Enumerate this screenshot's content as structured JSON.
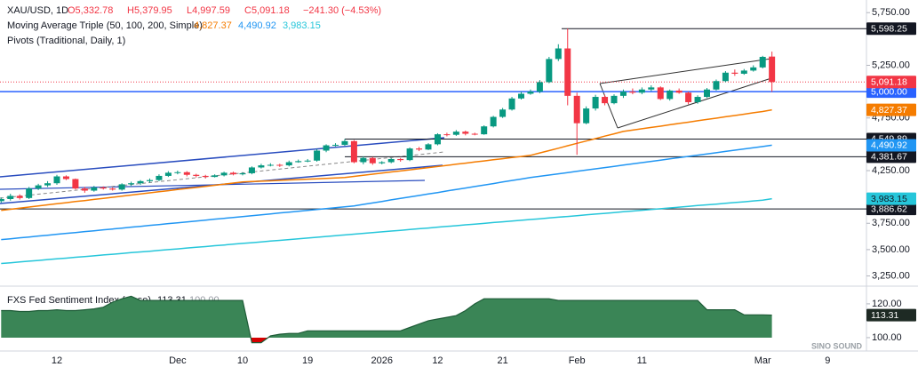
{
  "chart_data": {
    "type": "candlestick",
    "header": {
      "symbol": "XAU/USD, 1D",
      "open": "O5,332.78",
      "high": "H5,379.95",
      "low": "L4,997.59",
      "close": "C5,091.18",
      "change": "−241.30 (−4.53%)"
    },
    "ma_title": "Moving Average Triple (50, 100, 200, Simple)",
    "pivots_title": "Pivots (Traditional, Daily, 1)",
    "watermark": "SINO SOUND",
    "categories": [
      null,
      null,
      null,
      null,
      null,
      null,
      "12",
      null,
      null,
      null,
      null,
      null,
      null,
      null,
      null,
      null,
      null,
      null,
      null,
      "Dec",
      null,
      null,
      null,
      null,
      null,
      null,
      "10",
      null,
      null,
      null,
      null,
      null,
      null,
      "19",
      null,
      null,
      null,
      null,
      null,
      null,
      null,
      "2026",
      null,
      null,
      null,
      null,
      null,
      "12",
      null,
      null,
      null,
      null,
      null,
      null,
      "21",
      null,
      null,
      null,
      null,
      null,
      null,
      null,
      "Feb",
      null,
      null,
      null,
      null,
      null,
      null,
      "11",
      null,
      null,
      null,
      null,
      null,
      null,
      null,
      null,
      null,
      null,
      null,
      null,
      "Mar",
      null,
      null,
      null,
      null,
      null,
      null,
      "9"
    ],
    "ylim": [
      3170,
      5870
    ],
    "yticks": [
      {
        "value": 5750,
        "label": "5,750.00"
      },
      {
        "value": 5250,
        "label": "5,250.00"
      },
      {
        "value": 4750,
        "label": "4,750.00"
      },
      {
        "value": 4250,
        "label": "4,250.00"
      },
      {
        "value": 3750,
        "label": "3,750.00"
      },
      {
        "value": 3500,
        "label": "3,500.00"
      },
      {
        "value": 3250,
        "label": "3,250.00"
      }
    ],
    "candles": {
      "up_color": "#089981",
      "down_color": "#f23645",
      "last_label": "5,091.18",
      "open": [
        3960,
        3980,
        4010,
        3990,
        4080,
        4110,
        4130,
        4195,
        4170,
        4080,
        4060,
        4090,
        4080,
        4070,
        4120,
        4130,
        4150,
        4160,
        4200,
        4230,
        4235,
        4210,
        4200,
        4190,
        4205,
        4230,
        4215,
        4225,
        4280,
        4300,
        4305,
        4300,
        4330,
        4340,
        4345,
        4440,
        4490,
        4495,
        4530,
        4330,
        4370,
        4320,
        4330,
        4360,
        4350,
        4460,
        4450,
        4500,
        4595,
        4590,
        4620,
        4600,
        4595,
        4670,
        4760,
        4830,
        4935,
        4980,
        5000,
        5090,
        5310,
        5410,
        4960,
        4700,
        4840,
        4950,
        4890,
        4960,
        5000,
        4990,
        5020,
        5040,
        4930,
        5010,
        4990,
        4900,
        4950,
        5020,
        5100,
        5180,
        5170,
        5200,
        5230,
        5332.78,
        null,
        null,
        null,
        null,
        null,
        null
      ],
      "high": [
        3995,
        4030,
        4025,
        4095,
        4125,
        4150,
        4210,
        4205,
        4175,
        4095,
        4105,
        4100,
        4090,
        4130,
        4145,
        4160,
        4175,
        4215,
        4245,
        4250,
        4245,
        4220,
        4210,
        4215,
        4240,
        4240,
        4235,
        4290,
        4315,
        4320,
        4315,
        4345,
        4355,
        4360,
        4455,
        4500,
        4510,
        4550,
        4540,
        4385,
        4380,
        4340,
        4370,
        4370,
        4470,
        4475,
        4510,
        4605,
        4610,
        4635,
        4630,
        4610,
        4680,
        4770,
        4845,
        4950,
        5000,
        5020,
        5110,
        5330,
        5450,
        5598.25,
        4990,
        4860,
        4970,
        4970,
        4975,
        5020,
        5030,
        5040,
        5060,
        5050,
        5020,
        5030,
        5000,
        4965,
        5035,
        5115,
        5195,
        5210,
        5215,
        5250,
        5340,
        5379.95,
        null,
        null,
        null,
        null,
        null,
        null
      ],
      "low": [
        3945,
        3965,
        3975,
        3980,
        4065,
        4095,
        4115,
        4160,
        4070,
        4040,
        4050,
        4070,
        4060,
        4060,
        4105,
        4115,
        4135,
        4150,
        4190,
        4215,
        4195,
        4185,
        4175,
        4185,
        4195,
        4205,
        4205,
        4215,
        4270,
        4290,
        4285,
        4290,
        4325,
        4330,
        4335,
        4425,
        4480,
        4485,
        4320,
        4310,
        4305,
        4310,
        4320,
        4335,
        4340,
        4435,
        4445,
        4490,
        4575,
        4580,
        4585,
        4585,
        4590,
        4660,
        4750,
        4820,
        4925,
        4970,
        4985,
        5080,
        5290,
        4870,
        4400,
        4690,
        4820,
        4870,
        4880,
        4940,
        4975,
        4975,
        5005,
        4920,
        4915,
        4980,
        4880,
        4885,
        4940,
        5010,
        5090,
        5150,
        5160,
        5190,
        5220,
        4997.59,
        null,
        null,
        null,
        null,
        null,
        null
      ],
      "close": [
        3980,
        4010,
        3990,
        4080,
        4110,
        4130,
        4195,
        4170,
        4080,
        4060,
        4090,
        4080,
        4070,
        4120,
        4130,
        4150,
        4160,
        4200,
        4230,
        4235,
        4210,
        4200,
        4190,
        4205,
        4230,
        4215,
        4225,
        4280,
        4300,
        4305,
        4300,
        4330,
        4340,
        4345,
        4440,
        4490,
        4495,
        4530,
        4330,
        4370,
        4320,
        4330,
        4360,
        4350,
        4460,
        4450,
        4500,
        4595,
        4590,
        4620,
        4600,
        4595,
        4670,
        4760,
        4830,
        4935,
        4980,
        5000,
        5090,
        5310,
        5410,
        4960,
        4700,
        4840,
        4950,
        4890,
        4960,
        5000,
        4990,
        5020,
        5040,
        4930,
        5010,
        4990,
        4900,
        4950,
        5020,
        5100,
        5180,
        5170,
        5200,
        5230,
        5330,
        5091.18,
        null,
        null,
        null,
        null,
        null,
        null
      ]
    },
    "moving_averages": [
      {
        "color": "#f57c00",
        "text_color": "#ffffff",
        "last_label": "4,827.37",
        "values": [
          3873,
          3883,
          3894,
          3904,
          3914,
          3925,
          3935,
          3945,
          3956,
          3966,
          3977,
          3987,
          3997,
          4008,
          4018,
          4028,
          4039,
          4049,
          4059,
          4070,
          4080,
          4090,
          4101,
          4111,
          4121,
          4132,
          4142,
          4146,
          4150,
          4153,
          4157,
          4161,
          4165,
          4169,
          4172,
          4176,
          4180,
          4184,
          4195,
          4205,
          4216,
          4226,
          4237,
          4247,
          4258,
          4268,
          4279,
          4289,
          4300,
          4311,
          4321,
          4332,
          4342,
          4353,
          4363,
          4374,
          4384,
          4395,
          4418,
          4440,
          4463,
          4486,
          4509,
          4531,
          4554,
          4577,
          4599,
          4622,
          4635,
          4647,
          4660,
          4672,
          4685,
          4698,
          4710,
          4723,
          4736,
          4748,
          4761,
          4773,
          4786,
          4799,
          4811,
          4827.37,
          null,
          null,
          null,
          null,
          null,
          null
        ]
      },
      {
        "color": "#2196f3",
        "text_color": "#ffffff",
        "last_label": "4,490.92",
        "values": [
          3595,
          3603,
          3612,
          3620,
          3629,
          3637,
          3646,
          3654,
          3662,
          3671,
          3679,
          3688,
          3696,
          3704,
          3713,
          3721,
          3730,
          3738,
          3747,
          3755,
          3763,
          3772,
          3780,
          3789,
          3797,
          3805,
          3814,
          3822,
          3831,
          3839,
          3848,
          3856,
          3864,
          3873,
          3881,
          3890,
          3898,
          3907,
          3915,
          3929,
          3943,
          3957,
          3972,
          3986,
          4000,
          4014,
          4028,
          4042,
          4057,
          4071,
          4085,
          4099,
          4113,
          4127,
          4142,
          4156,
          4170,
          4184,
          4196,
          4208,
          4220,
          4231,
          4243,
          4255,
          4267,
          4279,
          4290,
          4302,
          4314,
          4326,
          4338,
          4349,
          4361,
          4373,
          4385,
          4397,
          4408,
          4420,
          4432,
          4444,
          4456,
          4467,
          4479,
          4490.92,
          null,
          null,
          null,
          null,
          null,
          null
        ]
      },
      {
        "color": "#26c6da",
        "text_color": "#131722",
        "last_label": "3,983.15",
        "values": [
          3368,
          3375,
          3383,
          3390,
          3397,
          3405,
          3412,
          3419,
          3427,
          3434,
          3441,
          3449,
          3456,
          3463,
          3471,
          3478,
          3485,
          3493,
          3500,
          3507,
          3515,
          3522,
          3529,
          3537,
          3544,
          3551,
          3559,
          3566,
          3573,
          3581,
          3588,
          3595,
          3603,
          3610,
          3617,
          3625,
          3632,
          3639,
          3647,
          3654,
          3661,
          3669,
          3676,
          3683,
          3691,
          3698,
          3705,
          3713,
          3720,
          3727,
          3735,
          3742,
          3749,
          3757,
          3764,
          3771,
          3778,
          3786,
          3793,
          3800,
          3808,
          3815,
          3822,
          3830,
          3837,
          3844,
          3852,
          3859,
          3866,
          3874,
          3881,
          3888,
          3896,
          3903,
          3910,
          3918,
          3925,
          3932,
          3940,
          3947,
          3954,
          3962,
          3969,
          3983.15,
          null,
          null,
          null,
          null,
          null,
          null
        ]
      }
    ],
    "pivots": [
      {
        "value": 5598.25,
        "label": "5,598.25"
      },
      {
        "value": 4549.89,
        "label": "4,549.89"
      },
      {
        "value": 4381.67,
        "label": "4,381.67"
      },
      {
        "value": 3886.62,
        "label": "3,886.62"
      }
    ],
    "hline": {
      "value": 5000,
      "label": "5,000.00",
      "color": "#2962ff"
    },
    "indicator": {
      "title": "FXS Fed Sentiment Index (close)",
      "last_label": "113.31",
      "ref_label": "100.00",
      "color": "#3a8556",
      "line_color": "#1f5c38",
      "neg_color": "#d50000",
      "baseline": 100,
      "ylim": [
        90.5,
        128.9
      ],
      "yticks": [
        {
          "value": 120,
          "label": "120.00"
        },
        {
          "value": 100,
          "label": "100.00"
        }
      ],
      "values": [
        116,
        116,
        115.5,
        115.5,
        116,
        116,
        116.5,
        116,
        116,
        116.5,
        117,
        118,
        121,
        123,
        124.5,
        122,
        122,
        122,
        122,
        122,
        122,
        122,
        122,
        122,
        122,
        122,
        122,
        97,
        97,
        101,
        102,
        102.5,
        102.5,
        104,
        104,
        104,
        104,
        104,
        104,
        104,
        104,
        104,
        104,
        104,
        106,
        108,
        110,
        111,
        112,
        113,
        116,
        120,
        123,
        123,
        123,
        123,
        123,
        123,
        123,
        123,
        122,
        122,
        122,
        122,
        122,
        122,
        122,
        122,
        122,
        122,
        122,
        122,
        122,
        122,
        122,
        122,
        116.5,
        116.5,
        116.5,
        116.5,
        113.5,
        113.5,
        113.5,
        113.31,
        null,
        null,
        null,
        null,
        null,
        null
      ]
    }
  }
}
